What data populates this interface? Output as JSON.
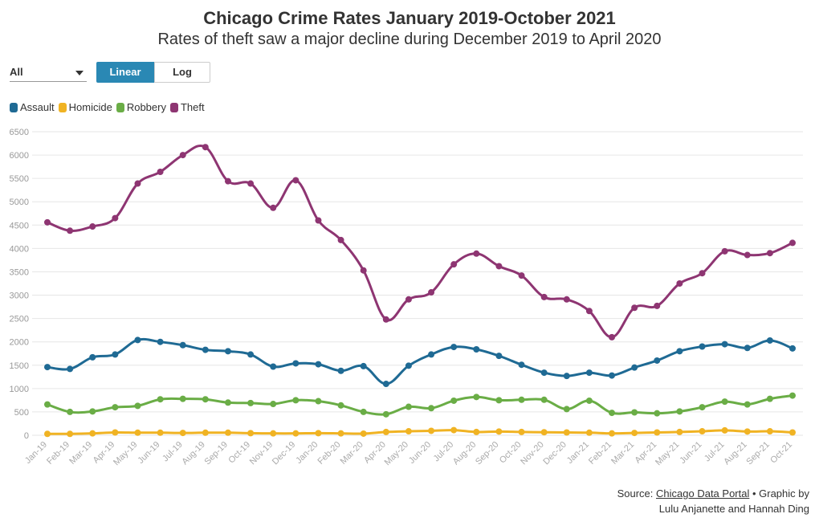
{
  "header": {
    "title": "Chicago Crime Rates January 2019-October 2021",
    "subtitle": "Rates of theft saw a major decline during December 2019 to April 2020"
  },
  "controls": {
    "dropdown_value": "All",
    "scale_buttons": [
      "Linear",
      "Log"
    ],
    "active_scale": "Linear"
  },
  "footer": {
    "source_prefix": "Source: ",
    "source_link": "Chicago Data Portal",
    "source_suffix": " • Graphic by",
    "credit": "Lulu Anjanette and Hannah Ding"
  },
  "chart_data": {
    "type": "line",
    "title": "Chicago Crime Rates January 2019-October 2021",
    "subtitle": "Rates of theft saw a major decline during December 2019 to April 2020",
    "xlabel": "",
    "ylabel": "",
    "ylim": [
      0,
      6500
    ],
    "yticks": [
      0,
      500,
      1000,
      1500,
      2000,
      2500,
      3000,
      3500,
      4000,
      4500,
      5000,
      5500,
      6000,
      6500
    ],
    "grid": true,
    "legend_position": "top-left",
    "categories": [
      "Jan-19",
      "Feb-19",
      "Mar-19",
      "Apr-19",
      "May-19",
      "Jun-19",
      "Jul-19",
      "Aug-19",
      "Sep-19",
      "Oct-19",
      "Nov-19",
      "Dec-19",
      "Jan-20",
      "Feb-20",
      "Mar-20",
      "Apr-20",
      "May-20",
      "Jun-20",
      "Jul-20",
      "Aug-20",
      "Sep-20",
      "Oct-20",
      "Nov-20",
      "Dec-20",
      "Jan-21",
      "Feb-21",
      "Mar-21",
      "Apr-21",
      "May-21",
      "Jun-21",
      "Jul-21",
      "Aug-21",
      "Sep-21",
      "Oct-21"
    ],
    "series": [
      {
        "name": "Assault",
        "color": "#1f6a94",
        "values": [
          1460,
          1420,
          1670,
          1730,
          2040,
          2000,
          1930,
          1830,
          1800,
          1730,
          1470,
          1540,
          1520,
          1380,
          1480,
          1100,
          1490,
          1730,
          1890,
          1840,
          1700,
          1510,
          1340,
          1270,
          1340,
          1280,
          1450,
          1600,
          1800,
          1900,
          1950,
          1870,
          2030,
          1860
        ]
      },
      {
        "name": "Homicide",
        "color": "#f0b323",
        "values": [
          30,
          30,
          40,
          60,
          55,
          55,
          50,
          55,
          55,
          45,
          40,
          40,
          45,
          40,
          35,
          70,
          85,
          95,
          110,
          70,
          80,
          70,
          65,
          60,
          55,
          40,
          50,
          60,
          70,
          85,
          105,
          80,
          85,
          60
        ]
      },
      {
        "name": "Robbery",
        "color": "#6aad46",
        "values": [
          660,
          500,
          510,
          600,
          630,
          770,
          780,
          770,
          700,
          690,
          670,
          750,
          730,
          640,
          500,
          450,
          610,
          580,
          740,
          820,
          750,
          760,
          760,
          560,
          740,
          480,
          490,
          470,
          510,
          600,
          720,
          660,
          780,
          850
        ]
      },
      {
        "name": "Theft",
        "color": "#8e3572",
        "values": [
          4560,
          4380,
          4470,
          4650,
          5390,
          5640,
          6000,
          6170,
          5440,
          5390,
          4870,
          5460,
          4600,
          4180,
          3530,
          2480,
          2910,
          3060,
          3660,
          3890,
          3620,
          3420,
          2960,
          2910,
          2660,
          2100,
          2730,
          2770,
          3250,
          3470,
          3940,
          3860,
          3900,
          4120
        ]
      }
    ]
  }
}
